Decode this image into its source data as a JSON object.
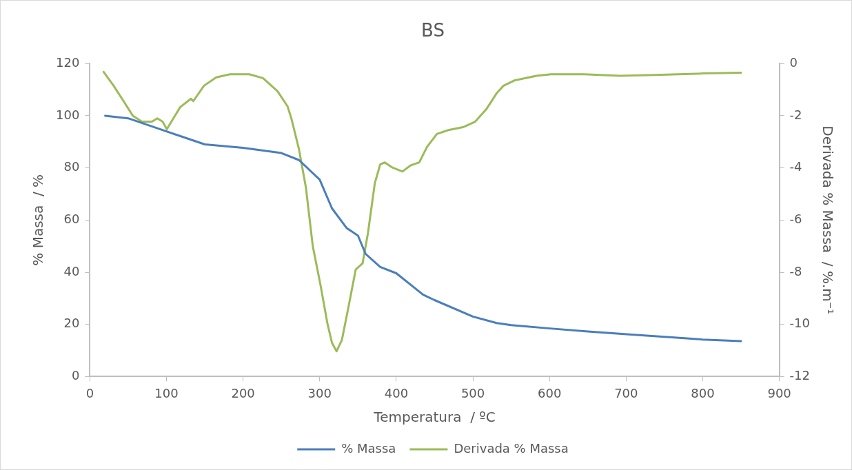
{
  "chart_data": {
    "type": "line",
    "title": "BS",
    "xlabel": "Temperatura  / ºC",
    "ylabel": "% Massa  / %",
    "y2label": "Derivada % Massa  / %.m⁻¹",
    "xlim": [
      0,
      900
    ],
    "xticks": [
      0,
      100,
      200,
      300,
      400,
      500,
      600,
      700,
      800,
      900
    ],
    "ylim": [
      0,
      120
    ],
    "yticks": [
      0,
      20,
      40,
      60,
      80,
      100,
      120
    ],
    "y2lim": [
      -12,
      0
    ],
    "y2ticks": [
      -12,
      -10,
      -8,
      -6,
      -4,
      -2,
      0
    ],
    "grid": false,
    "legend": "bottom",
    "marker": "none",
    "line_style": "solid",
    "series": [
      {
        "name": "% Massa",
        "color": "#4a7ebb",
        "x": [
          20,
          50,
          100,
          150,
          200,
          250,
          273,
          300,
          316,
          335,
          350,
          360,
          379,
          400,
          435,
          450,
          500,
          531,
          550,
          598,
          650,
          707,
          750,
          800,
          850
        ],
        "values": [
          100,
          99,
          94,
          89,
          87.7,
          85.7,
          83,
          75.5,
          64.5,
          57,
          54,
          47,
          42,
          39.6,
          31.4,
          29.3,
          23,
          20.5,
          19.7,
          18.5,
          17.3,
          16.1,
          15.2,
          14.2,
          13.6
        ]
      },
      {
        "name": "Derivada % Massa",
        "color": "#9bbb59",
        "axis": "y2",
        "x": [
          18,
          31,
          44,
          56,
          68,
          81,
          88,
          95,
          100.5,
          109,
          118,
          132,
          135,
          140,
          149,
          165,
          183,
          208,
          226,
          245,
          258,
          263,
          273,
          282,
          291,
          301,
          310,
          316,
          322,
          329,
          338,
          347,
          356,
          363,
          372,
          379,
          385,
          395,
          408,
          419,
          430,
          440,
          453,
          468,
          487,
          503,
          518,
          531,
          540,
          555,
          583,
          602,
          645,
          692,
          738,
          800,
          850
        ],
        "values": [
          -0.32,
          -0.85,
          -1.44,
          -2.0,
          -2.23,
          -2.23,
          -2.1,
          -2.23,
          -2.52,
          -2.1,
          -1.67,
          -1.35,
          -1.44,
          -1.23,
          -0.85,
          -0.53,
          -0.41,
          -0.41,
          -0.56,
          -1.06,
          -1.64,
          -2.1,
          -3.29,
          -4.75,
          -7.0,
          -8.48,
          -9.95,
          -10.7,
          -11.03,
          -10.6,
          -9.27,
          -7.9,
          -7.66,
          -6.5,
          -4.58,
          -3.87,
          -3.79,
          -3.99,
          -4.14,
          -3.9,
          -3.79,
          -3.2,
          -2.7,
          -2.55,
          -2.44,
          -2.23,
          -1.73,
          -1.14,
          -0.85,
          -0.64,
          -0.47,
          -0.41,
          -0.41,
          -0.47,
          -0.44,
          -0.38,
          -0.35
        ]
      }
    ]
  }
}
